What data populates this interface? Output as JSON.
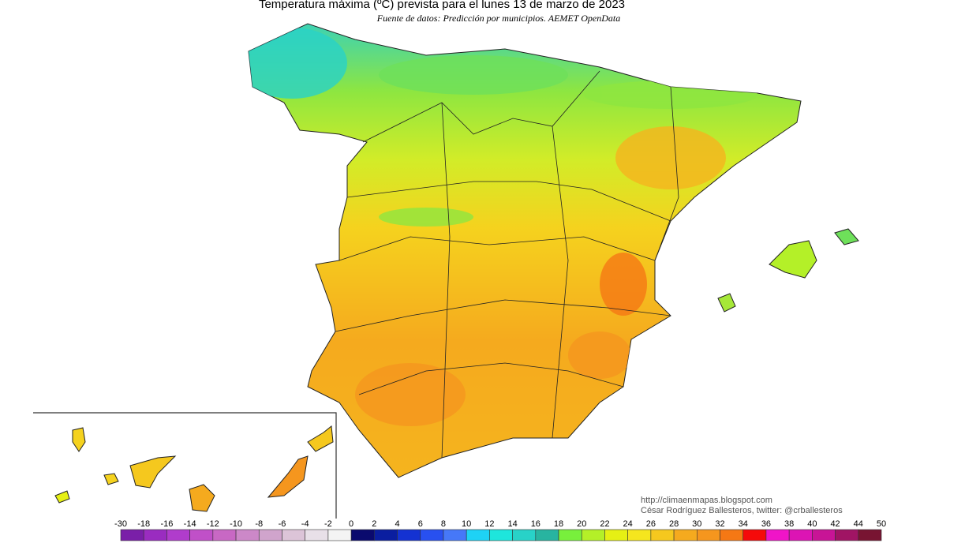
{
  "title": "Temperatura máxima (ºC) prevista para el lunes 13 de marzo de 2023",
  "subtitle": "Fuente de datos: Predicción por municipios. AEMET OpenData",
  "credits": [
    "http://climaenmapas.blogspot.com",
    "César Rodríguez Ballesteros, twitter: @crballesteros"
  ],
  "legend": {
    "labels": [
      -30,
      -18,
      -16,
      -14,
      -12,
      -10,
      -8,
      -6,
      -4,
      -2,
      0,
      2,
      4,
      6,
      8,
      10,
      12,
      14,
      16,
      18,
      20,
      22,
      24,
      26,
      28,
      30,
      32,
      34,
      36,
      38,
      40,
      42,
      44,
      50
    ],
    "colors": [
      "#7a1fa8",
      "#9a2cc0",
      "#b03ccc",
      "#c050c8",
      "#c868c4",
      "#cc88c8",
      "#d0a4cc",
      "#dcc4d8",
      "#e8e0e8",
      "#f4f4f4",
      "#0a0a6e",
      "#0a1ea0",
      "#1432d2",
      "#2850f0",
      "#4678f8",
      "#1ed2f5",
      "#1ee6dc",
      "#28d2c8",
      "#28b4a0",
      "#78f03c",
      "#b4f028",
      "#e6f014",
      "#f5e61e",
      "#f5c81e",
      "#f5aa1e",
      "#f5961e",
      "#f57814",
      "#f50a0a",
      "#f014c8",
      "#dc14b4",
      "#c81496",
      "#a01464",
      "#781432"
    ]
  }
}
